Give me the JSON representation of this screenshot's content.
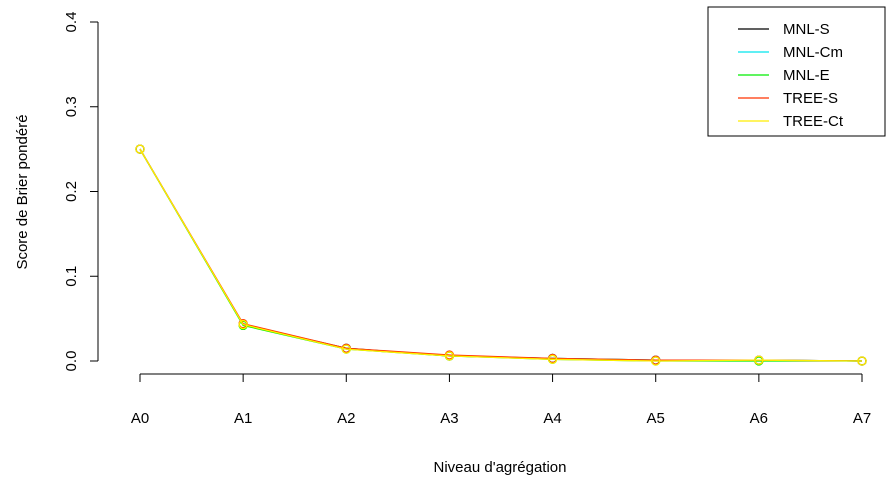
{
  "chart_data": {
    "type": "line",
    "xlabel": "Niveau d'agrégation",
    "ylabel": "Score de Brier pondéré",
    "categories": [
      "A0",
      "A1",
      "A2",
      "A3",
      "A4",
      "A5",
      "A6",
      "A7"
    ],
    "ylim": [
      0,
      0.4
    ],
    "yticks": [
      "0.0",
      "0.1",
      "0.2",
      "0.3",
      "0.4"
    ],
    "grid": false,
    "legend_position": "top-right",
    "series": [
      {
        "name": "MNL-S",
        "color": "#000000",
        "values": [
          0.25,
          0.043,
          0.015,
          0.006,
          0.003,
          0.001,
          0.001,
          0.0
        ]
      },
      {
        "name": "MNL-Cm",
        "color": "#00e5ee",
        "values": [
          0.25,
          0.043,
          0.015,
          0.006,
          0.003,
          0.001,
          0.001,
          0.0
        ]
      },
      {
        "name": "MNL-E",
        "color": "#00ee00",
        "values": [
          0.25,
          0.042,
          0.014,
          0.006,
          0.002,
          0.0,
          0.0,
          0.0
        ]
      },
      {
        "name": "TREE-S",
        "color": "#ff3300",
        "values": [
          0.25,
          0.044,
          0.015,
          0.007,
          0.003,
          0.001,
          0.001,
          0.0
        ]
      },
      {
        "name": "TREE-Ct",
        "color": "#ffee00",
        "values": [
          0.25,
          0.043,
          0.014,
          0.006,
          0.002,
          0.0,
          0.001,
          0.0
        ]
      }
    ]
  }
}
